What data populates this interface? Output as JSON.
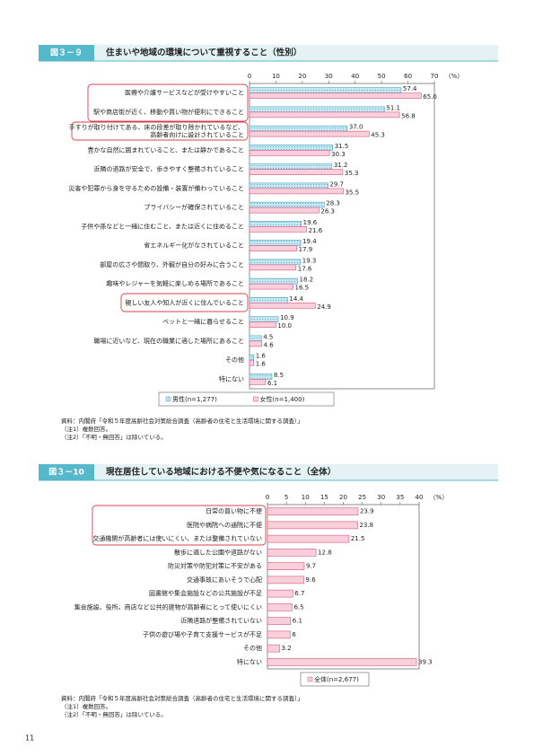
{
  "page_number": "11",
  "chart_data": [
    {
      "type": "bar",
      "orientation": "horizontal",
      "figure_label": "図３－９",
      "title": "住まいや地域の環境について重視すること（性別）",
      "x_unit": "（%）",
      "categories": [
        "医療や介護サービスなどが受けやすいこと",
        "駅や商店街が近く、移動や買い物が便利にできること",
        "手すりが取り付けてある、床の段差が取り除かれているなど、\n高齢者向けに設計されていること",
        "豊かな自然に囲まれていること、または静かであること",
        "近隣の道路が安全で、歩きやすく整備されていること",
        "災害や犯罪から身を守るための設備・装置が備わっていること",
        "プライバシーが確保されていること",
        "子供や孫などと一緒に住むこと、または近くに住めること",
        "省エネルギー化がなされていること",
        "部屋の広さや間取り、外観が自分の好みに合うこと",
        "趣味やレジャーを気軽に楽しめる場所であること",
        "親しい友人や知人が近くに住んでいること",
        "ペットと一緒に暮らせること",
        "職場に近いなど、現在の職業に適した場所にあること",
        "その他",
        "特にない"
      ],
      "series": [
        {
          "name": "男性(n=1,277)",
          "color": "#c4e8f2",
          "pattern": "dots",
          "values": [
            57.4,
            51.1,
            37.0,
            31.5,
            31.2,
            29.7,
            28.3,
            19.6,
            19.4,
            19.3,
            18.2,
            14.4,
            10.9,
            4.5,
            1.6,
            8.5
          ],
          "value_labels": [
            "57.4",
            "51.1",
            "37.0",
            "31.5",
            "31.2",
            "29.7",
            "28.3",
            "19.6",
            "19.4",
            "19.3",
            "18.2",
            "14.4",
            "10.9",
            "4.5",
            "1.6",
            "8.5"
          ]
        },
        {
          "name": "女性(n=1,400)",
          "color": "#f9cfdc",
          "values": [
            65.0,
            56.8,
            45.3,
            30.3,
            35.3,
            35.5,
            26.3,
            21.6,
            17.9,
            17.6,
            16.5,
            24.9,
            10.0,
            4.6,
            1.6,
            6.1
          ],
          "value_labels": [
            "65.0",
            "56.8",
            "45.3",
            "30.3",
            "35.3",
            "35.5",
            "26.3",
            "21.6",
            "17.9",
            "17.6",
            "16.5",
            "24.9",
            "10.0",
            "4.6",
            "1.6",
            "6.1"
          ]
        }
      ],
      "xlim": [
        0,
        70
      ],
      "xticks": [
        0,
        10,
        20,
        30,
        40,
        50,
        60,
        70
      ],
      "notes": [
        "資料：内閣府「令和５年度高齢社会対策総合調査（高齢者の住宅と生活環境に関する調査）」",
        "（注1）複数回答。",
        "（注2）「不明・無回答」は除いている。"
      ]
    },
    {
      "type": "bar",
      "orientation": "horizontal",
      "figure_label": "図３－10",
      "title": "現在居住している地域における不便や気になること（全体）",
      "x_unit": "（%）",
      "categories": [
        "日常の買い物に不便",
        "医院や病院への通院に不便",
        "交通機関が高齢者には使いにくい、または整備されていない",
        "散歩に適した公園や道路がない",
        "防災対策や防犯対策に不安がある",
        "交通事故にあいそうで心配",
        "図書館や集会施設などの公共施設が不足",
        "集会施設、役所、商店など公共的建物が高齢者にとって使いにくい",
        "近隣道路が整備されていない",
        "子供の遊び場や子育て支援サービスが不足",
        "その他",
        "特にない"
      ],
      "series": [
        {
          "name": "全体(n=2,677)",
          "color": "#f9cfdc",
          "values": [
            23.9,
            23.8,
            21.5,
            12.8,
            9.7,
            9.6,
            6.7,
            6.5,
            6.1,
            6.0,
            3.2,
            39.3
          ]
        }
      ],
      "xlim": [
        0,
        40
      ],
      "xticks": [
        0,
        5,
        10,
        15,
        20,
        25,
        30,
        35,
        40
      ],
      "notes": [
        "資料：内閣府「令和５年度高齢社会対策総合調査（高齢者の住宅と生活環境に関する調査）」",
        "（注1）複数回答。",
        "（注2）「不明・無回答」は除いている。"
      ]
    }
  ]
}
